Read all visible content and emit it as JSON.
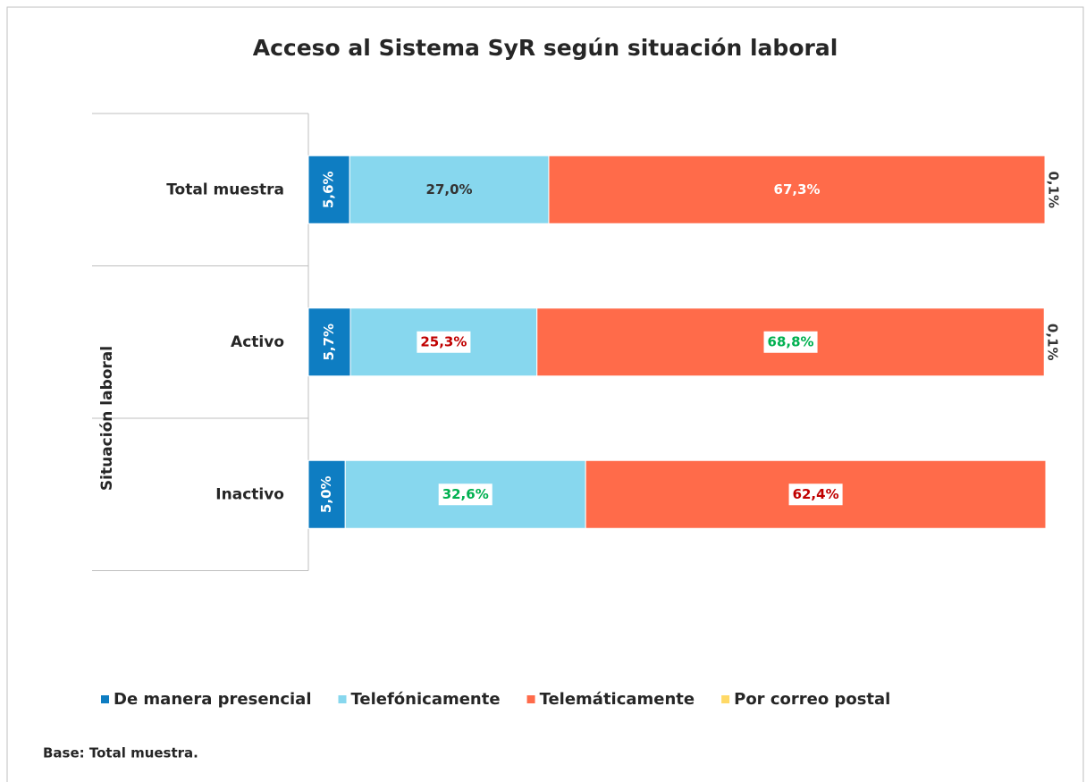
{
  "chart_data": {
    "type": "stacked_barh",
    "title": "Acceso al Sistema SyR según situación laboral",
    "categories": [
      "Total muestra",
      "Activo",
      "Inactivo"
    ],
    "groups": [
      {
        "name": "Situación laboral",
        "categories": [
          "Activo",
          "Inactivo"
        ]
      }
    ],
    "xlim": [
      0,
      100
    ],
    "series": [
      {
        "name": "De manera presencial",
        "color": "#0e7dc2",
        "values": [
          5.6,
          5.7,
          5.0
        ],
        "value_labels": [
          "5,6%",
          "5,7%",
          "5,0%"
        ],
        "value_label_colors": [
          "#ffffff",
          "#ffffff",
          "#ffffff"
        ],
        "value_label_boxed": [
          false,
          false,
          false
        ],
        "value_label_rotation": -90
      },
      {
        "name": "Telefónicamente",
        "color": "#87d7ee",
        "values": [
          27.0,
          25.3,
          32.6
        ],
        "value_label_colors": [
          "#333333",
          "#c00000",
          "#00b050"
        ],
        "value_labels": [
          "27,0%",
          "25,3%",
          "32,6%"
        ],
        "value_label_boxed": [
          false,
          true,
          true
        ],
        "value_label_rotation": 0
      },
      {
        "name": "Telemáticamente",
        "color": "#ff6b4a",
        "values": [
          67.3,
          68.8,
          62.4
        ],
        "value_labels": [
          "67,3%",
          "68,8%",
          "62,4%"
        ],
        "value_label_colors": [
          "#ffffff",
          "#00b050",
          "#c00000"
        ],
        "value_label_boxed": [
          false,
          true,
          true
        ],
        "value_label_rotation": 0
      },
      {
        "name": "Por correo postal",
        "color": "#ffd966",
        "values": [
          0.1,
          0.1,
          0
        ],
        "value_labels": [
          "0,1%",
          "0,1%",
          null
        ],
        "value_label_colors": [
          "#333333",
          "#333333",
          "#333333"
        ],
        "value_label_boxed": [
          false,
          false,
          false
        ],
        "value_label_rotation": 90
      }
    ],
    "legend": "bottom",
    "footnote": "Base: Total muestra."
  }
}
